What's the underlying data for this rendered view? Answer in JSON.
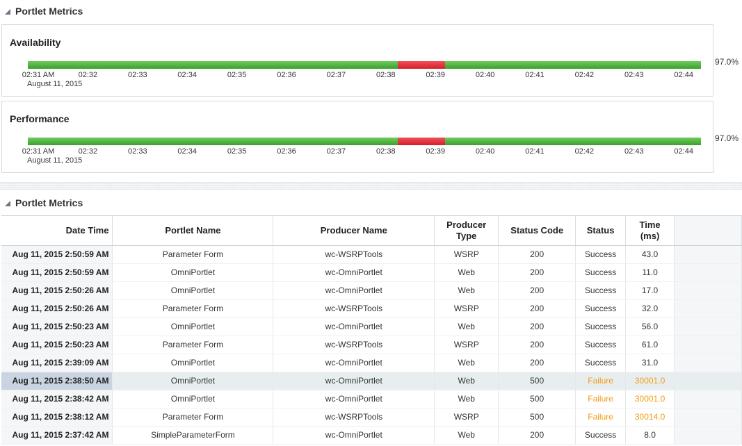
{
  "sections": {
    "charts_title": "Portlet Metrics",
    "table_title": "Portlet Metrics"
  },
  "availability": {
    "title": "Availability",
    "percent": "97.0%",
    "segments": [
      {
        "status": "up",
        "from": "02:31 AM",
        "to": "02:38"
      },
      {
        "status": "down",
        "from": "02:38",
        "to": "02:39"
      },
      {
        "status": "up",
        "from": "02:39",
        "to": "02:44"
      }
    ]
  },
  "performance": {
    "title": "Performance",
    "percent": "97.0%",
    "segments": [
      {
        "status": "up",
        "from": "02:31 AM",
        "to": "02:38"
      },
      {
        "status": "down",
        "from": "02:38",
        "to": "02:39"
      },
      {
        "status": "up",
        "from": "02:39",
        "to": "02:44"
      }
    ]
  },
  "timeline": {
    "ticks": [
      "02:31 AM",
      "02:32",
      "02:33",
      "02:34",
      "02:35",
      "02:36",
      "02:37",
      "02:38",
      "02:39",
      "02:40",
      "02:41",
      "02:42",
      "02:43",
      "02:44"
    ],
    "date": "August 11, 2015"
  },
  "colors": {
    "up": "#4cb33a",
    "down": "#e0303a",
    "failure_text": "#f29b12",
    "selected_row": "#e8eef0"
  },
  "table": {
    "columns": [
      "Date Time",
      "Portlet Name",
      "Producer Name",
      "Producer Type",
      "Status Code",
      "Status",
      "Time (ms)"
    ],
    "rows": [
      {
        "dt": "Aug 11, 2015 2:50:59 AM",
        "portlet": "Parameter Form",
        "producer": "wc-WSRPTools",
        "type": "WSRP",
        "code": "200",
        "status": "Success",
        "time": "43.0"
      },
      {
        "dt": "Aug 11, 2015 2:50:59 AM",
        "portlet": "OmniPortlet",
        "producer": "wc-OmniPortlet",
        "type": "Web",
        "code": "200",
        "status": "Success",
        "time": "11.0"
      },
      {
        "dt": "Aug 11, 2015 2:50:26 AM",
        "portlet": "OmniPortlet",
        "producer": "wc-OmniPortlet",
        "type": "Web",
        "code": "200",
        "status": "Success",
        "time": "17.0"
      },
      {
        "dt": "Aug 11, 2015 2:50:26 AM",
        "portlet": "Parameter Form",
        "producer": "wc-WSRPTools",
        "type": "WSRP",
        "code": "200",
        "status": "Success",
        "time": "32.0"
      },
      {
        "dt": "Aug 11, 2015 2:50:23 AM",
        "portlet": "OmniPortlet",
        "producer": "wc-OmniPortlet",
        "type": "Web",
        "code": "200",
        "status": "Success",
        "time": "56.0"
      },
      {
        "dt": "Aug 11, 2015 2:50:23 AM",
        "portlet": "Parameter Form",
        "producer": "wc-WSRPTools",
        "type": "WSRP",
        "code": "200",
        "status": "Success",
        "time": "61.0"
      },
      {
        "dt": "Aug 11, 2015 2:39:09 AM",
        "portlet": "OmniPortlet",
        "producer": "wc-OmniPortlet",
        "type": "Web",
        "code": "200",
        "status": "Success",
        "time": "31.0"
      },
      {
        "dt": "Aug 11, 2015 2:38:50 AM",
        "portlet": "OmniPortlet",
        "producer": "wc-OmniPortlet",
        "type": "Web",
        "code": "500",
        "status": "Failure",
        "time": "30001.0",
        "selected": true
      },
      {
        "dt": "Aug 11, 2015 2:38:42 AM",
        "portlet": "OmniPortlet",
        "producer": "wc-OmniPortlet",
        "type": "Web",
        "code": "500",
        "status": "Failure",
        "time": "30001.0"
      },
      {
        "dt": "Aug 11, 2015 2:38:12 AM",
        "portlet": "Parameter Form",
        "producer": "wc-WSRPTools",
        "type": "WSRP",
        "code": "500",
        "status": "Failure",
        "time": "30014.0"
      },
      {
        "dt": "Aug 11, 2015 2:37:42 AM",
        "portlet": "SimpleParameterForm",
        "producer": "wc-OmniPortlet",
        "type": "Web",
        "code": "200",
        "status": "Success",
        "time": "8.0"
      }
    ]
  }
}
